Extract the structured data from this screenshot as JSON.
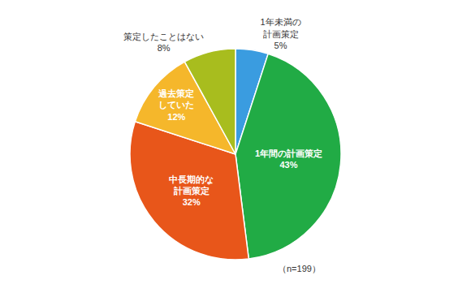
{
  "chart_data": {
    "type": "pie",
    "categories": [
      "1年未満の\n計画策定",
      "1年間の計画策定",
      "中長期的な\n計画策定",
      "過去策定\nしていた",
      "策定したことはない"
    ],
    "values": [
      5,
      43,
      32,
      12,
      8
    ],
    "value_labels": [
      "5%",
      "43%",
      "32%",
      "12%",
      "8%"
    ],
    "colors": [
      "#3a9ce0",
      "#21ab45",
      "#e8561a",
      "#f5b72b",
      "#a8bd1e"
    ],
    "data_labels": true,
    "annotation": "（n=199）"
  }
}
